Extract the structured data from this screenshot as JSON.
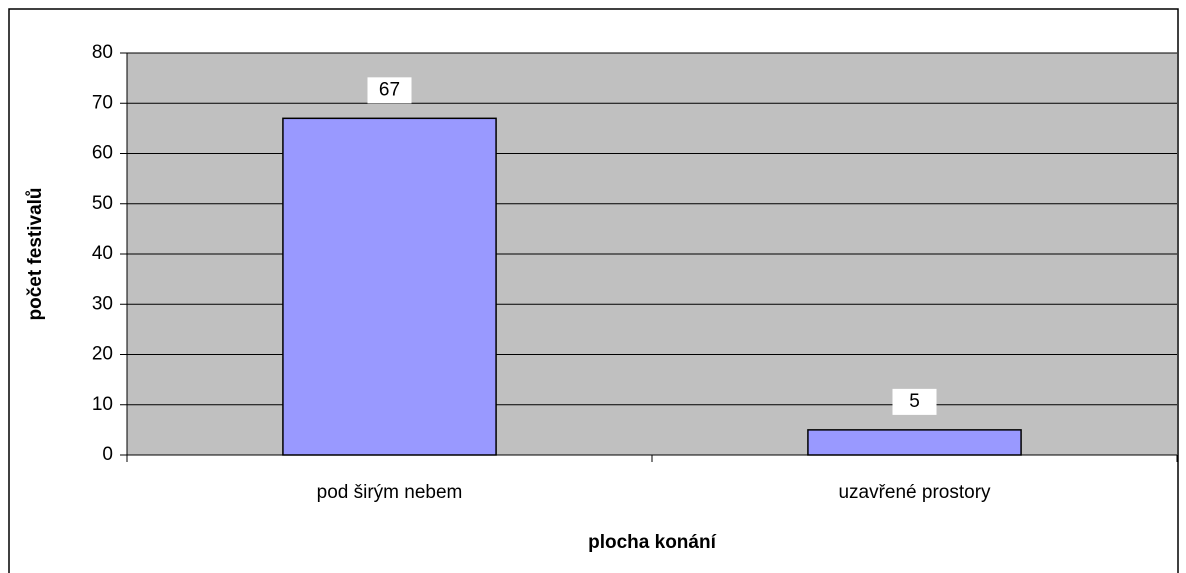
{
  "chart_data": {
    "type": "bar",
    "categories": [
      "pod širým nebem",
      "uzavřené prostory"
    ],
    "values": [
      67,
      5
    ],
    "color": "#9999ff",
    "xlabel": "plocha konání",
    "ylabel": "počet festivalů",
    "ylim": [
      0,
      80
    ],
    "yticks": [
      0,
      10,
      20,
      30,
      40,
      50,
      60,
      70,
      80
    ],
    "grid": true
  }
}
